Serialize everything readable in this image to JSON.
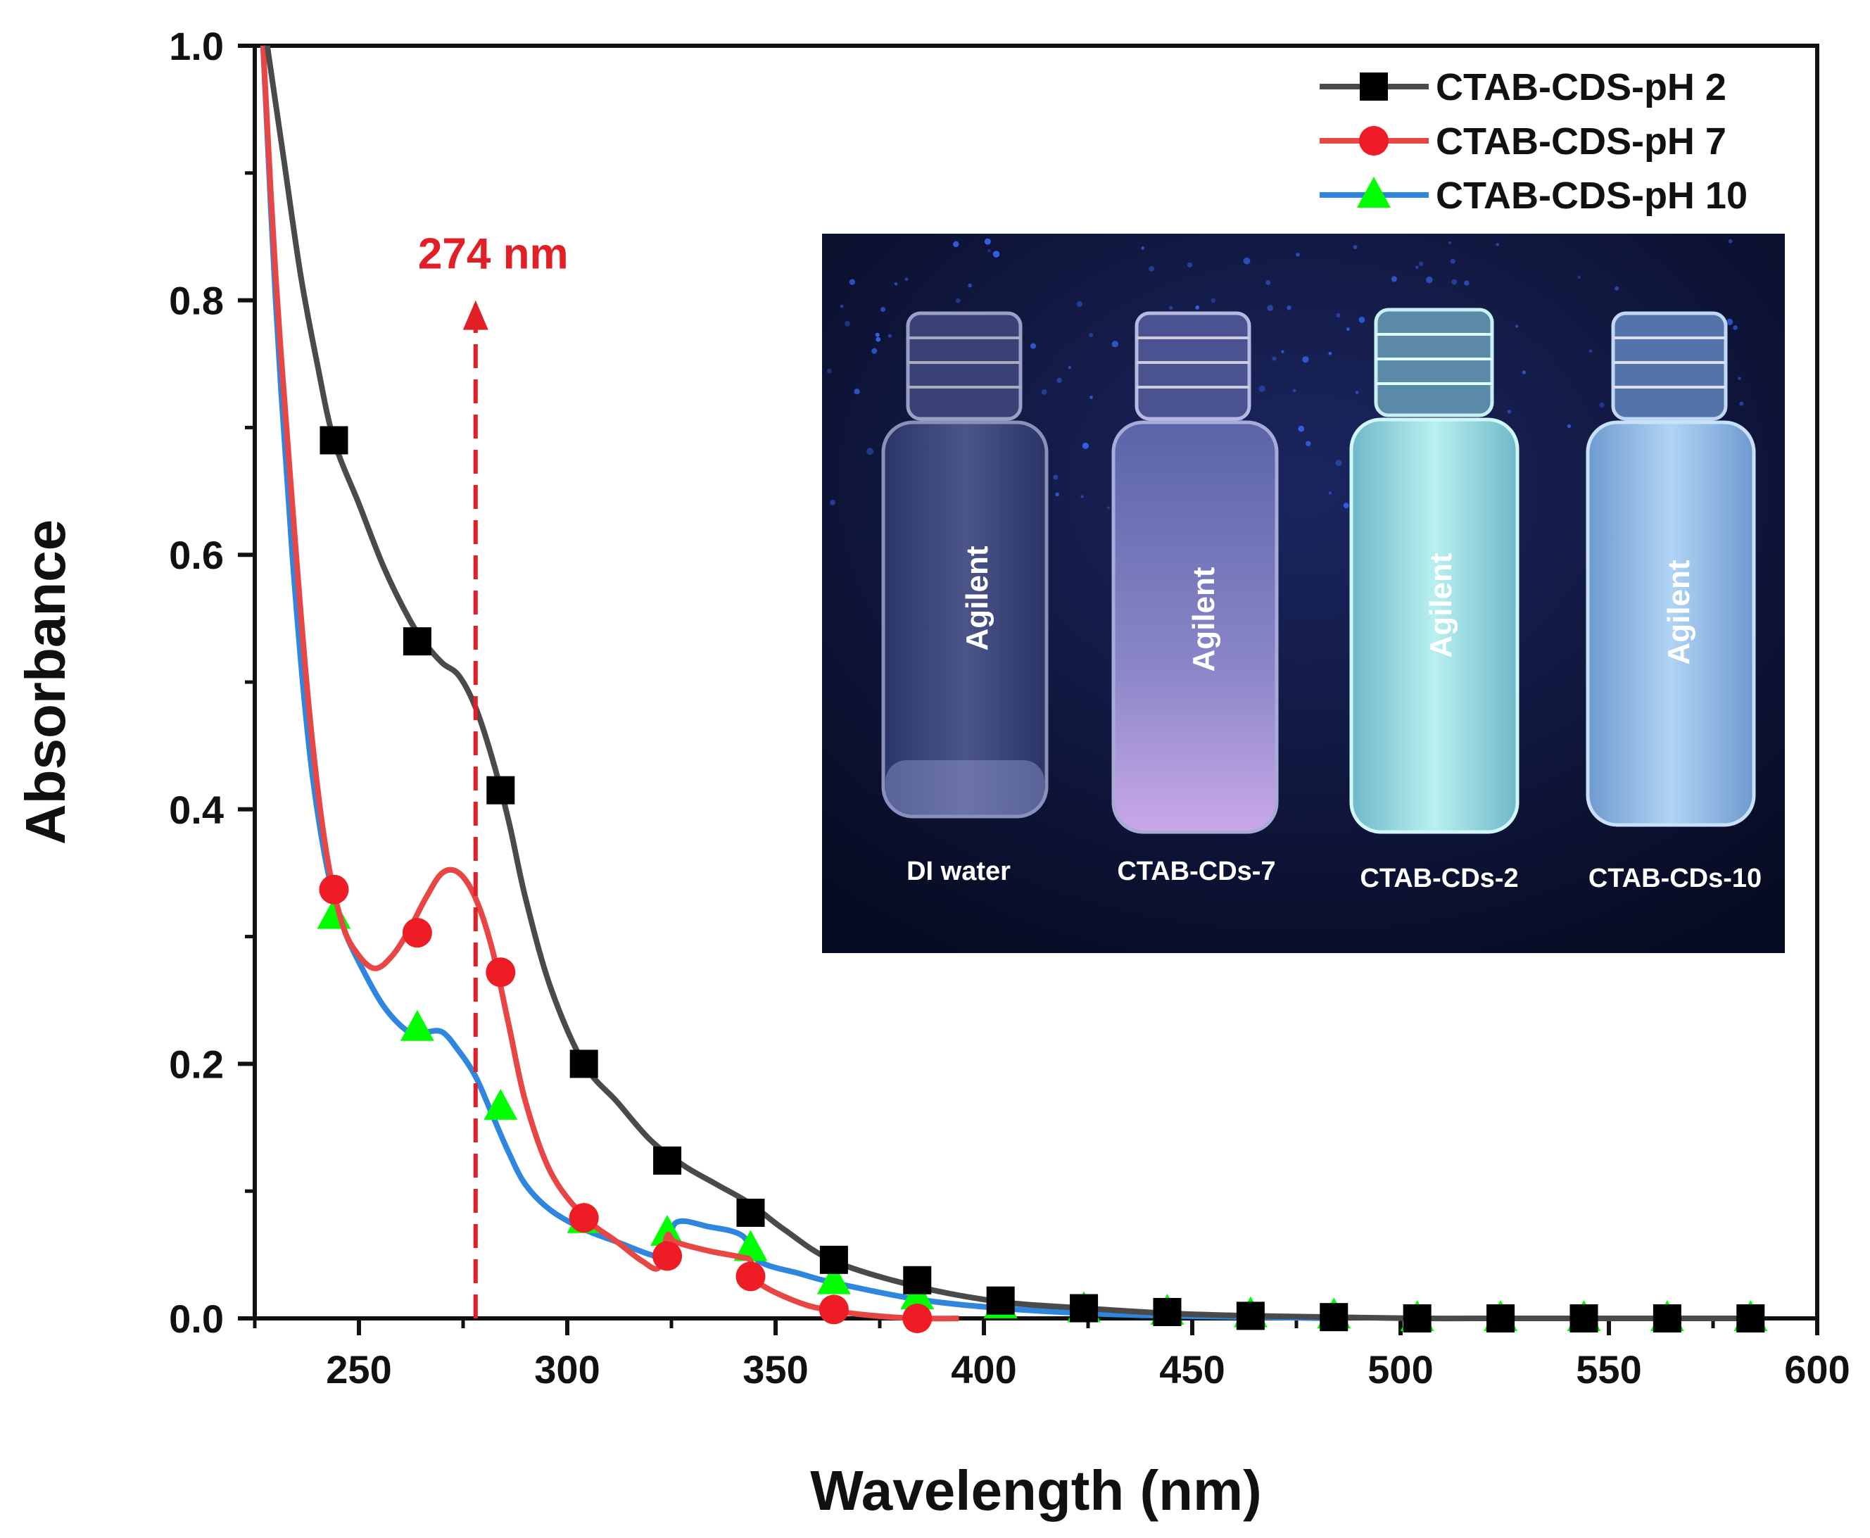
{
  "chart_data": {
    "type": "line",
    "title": "",
    "xlabel": "Wavelength (nm)",
    "ylabel": "Absorbance",
    "xlim": [
      225,
      600
    ],
    "ylim": [
      0.0,
      1.0
    ],
    "x_ticks": [
      "250",
      "300",
      "350",
      "400",
      "450",
      "500",
      "550",
      "600"
    ],
    "y_ticks": [
      "0.0",
      "0.2",
      "0.4",
      "0.6",
      "0.8",
      "1.0"
    ],
    "legend_position": "top-right",
    "series": [
      {
        "name": "CTAB-CDS-pH 2",
        "color": "#4a4a4a",
        "marker_color": "#000000",
        "marker": "square",
        "curve_x": [
          228,
          232,
          236,
          240,
          244,
          250,
          256,
          262,
          266,
          270,
          274,
          278,
          282,
          286,
          290,
          296,
          304,
          312,
          320,
          328,
          336,
          344,
          352,
          364,
          384,
          404,
          424,
          444,
          464,
          484,
          504,
          524,
          544,
          564,
          584
        ],
        "curve_y": [
          1.0,
          0.91,
          0.82,
          0.75,
          0.69,
          0.64,
          0.59,
          0.55,
          0.53,
          0.515,
          0.505,
          0.48,
          0.44,
          0.39,
          0.33,
          0.26,
          0.2,
          0.17,
          0.14,
          0.12,
          0.105,
          0.09,
          0.07,
          0.045,
          0.025,
          0.013,
          0.008,
          0.004,
          0.002,
          0.001,
          0.0,
          0.0,
          0.0,
          0.0,
          0.0
        ],
        "marker_x": [
          244,
          264,
          284,
          304,
          324,
          344,
          364,
          384,
          404,
          424,
          444,
          464,
          484,
          504,
          524,
          544,
          564,
          584
        ],
        "marker_y": [
          0.69,
          0.532,
          0.415,
          0.2,
          0.124,
          0.083,
          0.046,
          0.03,
          0.014,
          0.008,
          0.005,
          0.002,
          0.001,
          0.0,
          0.0,
          0.0,
          0.0,
          0.0
        ]
      },
      {
        "name": "CTAB-CDS-pH 7",
        "color": "#e84545",
        "marker_color": "#ee1c24",
        "marker": "circle",
        "curve_x": [
          227,
          230,
          234,
          238,
          242,
          246,
          250,
          254,
          258,
          262,
          266,
          270,
          274,
          278,
          282,
          286,
          290,
          296,
          304,
          312,
          318,
          322,
          324,
          326,
          334,
          342,
          344,
          346,
          356,
          364,
          374,
          384,
          394
        ],
        "curve_y": [
          1.0,
          0.82,
          0.64,
          0.48,
          0.37,
          0.31,
          0.285,
          0.275,
          0.285,
          0.305,
          0.33,
          0.35,
          0.35,
          0.33,
          0.29,
          0.23,
          0.17,
          0.115,
          0.08,
          0.06,
          0.045,
          0.04,
          0.065,
          0.06,
          0.053,
          0.048,
          0.045,
          0.028,
          0.012,
          0.006,
          0.002,
          0.0,
          0.0
        ],
        "marker_x": [
          244,
          264,
          284,
          304,
          324,
          344,
          364,
          384
        ],
        "marker_y": [
          0.337,
          0.303,
          0.272,
          0.079,
          0.049,
          0.033,
          0.007,
          0.0
        ]
      },
      {
        "name": "CTAB-CDS-pH 10",
        "color": "#2e86de",
        "marker_color": "#00ff00",
        "marker": "triangle",
        "curve_x": [
          227,
          230,
          234,
          238,
          242,
          246,
          250,
          256,
          262,
          266,
          270,
          274,
          278,
          282,
          286,
          290,
          296,
          304,
          312,
          320,
          324,
          326,
          334,
          342,
          346,
          356,
          364,
          384,
          404,
          424,
          444,
          464,
          484
        ],
        "curve_y": [
          1.0,
          0.8,
          0.6,
          0.45,
          0.36,
          0.31,
          0.28,
          0.245,
          0.225,
          0.225,
          0.225,
          0.21,
          0.19,
          0.16,
          0.13,
          0.105,
          0.085,
          0.07,
          0.06,
          0.05,
          0.048,
          0.075,
          0.072,
          0.065,
          0.045,
          0.035,
          0.028,
          0.015,
          0.008,
          0.004,
          0.002,
          0.001,
          0.0
        ],
        "marker_x": [
          244,
          264,
          284,
          304,
          324,
          344,
          364,
          384,
          404,
          424,
          444,
          464,
          484,
          504,
          524,
          544,
          564,
          584
        ],
        "marker_y": [
          0.316,
          0.228,
          0.166,
          0.077,
          0.067,
          0.055,
          0.029,
          0.017,
          0.01,
          0.007,
          0.005,
          0.003,
          0.002,
          0.0,
          0.0,
          0.0,
          0.0,
          0.0
        ]
      }
    ],
    "annotation": {
      "text": "274 nm",
      "x": 278,
      "arrow_y_from": 0.0,
      "arrow_y_to": 0.8,
      "color": "#e21f26"
    },
    "inset_photo": {
      "vial_labels": [
        "DI water",
        "CTAB-CDs-7",
        "CTAB-CDs-2",
        "CTAB-CDs-10"
      ],
      "vial_brand": "Agilent",
      "background": "#0d1638"
    }
  }
}
